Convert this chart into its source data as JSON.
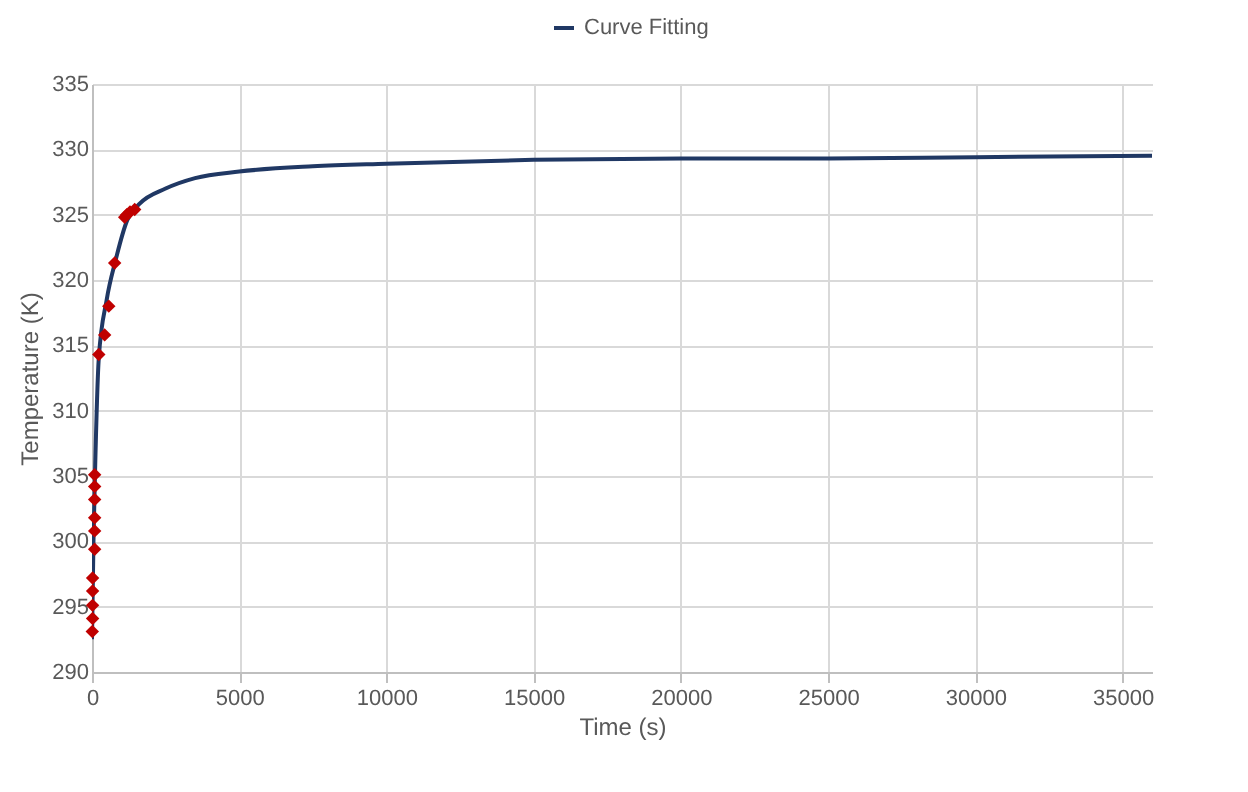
{
  "chart_data": {
    "type": "scatter",
    "xlabel": "Time (s)",
    "ylabel": "Temperature (K)",
    "xlim": [
      0,
      36000
    ],
    "xticks": [
      0,
      5000,
      10000,
      15000,
      20000,
      25000,
      30000,
      35000
    ],
    "ylim": [
      290,
      335
    ],
    "yticks": [
      290,
      295,
      300,
      305,
      310,
      315,
      320,
      325,
      330,
      335
    ],
    "grid": true,
    "legend": "top",
    "series": [
      {
        "marker": "diamond",
        "color": "#c00000",
        "x": [
          10,
          20,
          20,
          20,
          20,
          90,
          90,
          90,
          90,
          90,
          90,
          230,
          430,
          570,
          770,
          1110,
          1180,
          1290,
          1450
        ],
        "values": [
          293.1,
          294.1,
          295.1,
          296.2,
          297.2,
          299.4,
          300.8,
          301.8,
          303.2,
          304.2,
          305.1,
          314.3,
          315.8,
          318.0,
          321.3,
          324.8,
          325.0,
          325.2,
          325.4
        ]
      },
      {
        "type": "line",
        "name": "Curve Fitting",
        "color": "#203864",
        "marker": "none",
        "x": [
          0,
          50,
          100,
          230,
          500,
          800,
          1200,
          1600,
          2500,
          3500,
          5000,
          7500,
          10000,
          15000,
          20000,
          25000,
          30000,
          36000
        ],
        "values": [
          292.5,
          300,
          305,
          314,
          318.5,
          321.5,
          324.6,
          325.8,
          327,
          327.8,
          328.3,
          328.7,
          328.9,
          329.2,
          329.3,
          329.3,
          329.4,
          329.5
        ],
        "line_style": "solid"
      }
    ]
  }
}
